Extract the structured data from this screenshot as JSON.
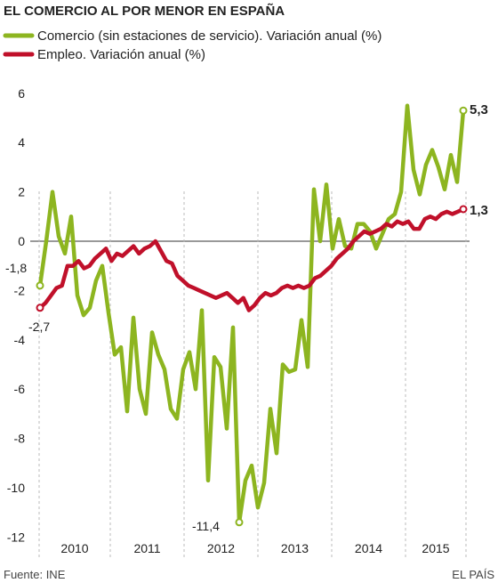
{
  "chart_data": {
    "type": "line",
    "title": "EL COMERCIO AL POR MENOR EN ESPAÑA",
    "yticks": [
      "6",
      "4",
      "2",
      "0",
      "-2",
      "-4",
      "-6",
      "-8",
      "-10",
      "-12"
    ],
    "ylim": [
      -12,
      6
    ],
    "year_labels": [
      "2010",
      "2011",
      "2012",
      "2013",
      "2014",
      "2015"
    ],
    "series": [
      {
        "name": "Comercio (sin estaciones de servicio). Variación anual (%)",
        "color": "#8db520",
        "values": [
          -1.8,
          0.0,
          2.0,
          0.2,
          -0.5,
          1.0,
          -2.2,
          -3.0,
          -2.7,
          -1.6,
          -1.0,
          -2.9,
          -4.6,
          -4.3,
          -6.9,
          -3.1,
          -6.0,
          -7.0,
          -3.7,
          -4.6,
          -5.2,
          -6.8,
          -7.2,
          -5.2,
          -4.5,
          -6.0,
          -2.8,
          -9.7,
          -4.7,
          -5.1,
          -7.6,
          -3.5,
          -11.4,
          -9.7,
          -9.1,
          -10.8,
          -9.8,
          -6.8,
          -8.6,
          -5.0,
          -5.3,
          -5.2,
          -3.2,
          -5.1,
          2.1,
          0.0,
          2.3,
          -0.3,
          0.9,
          -0.2,
          -0.3,
          0.7,
          0.7,
          0.4,
          -0.3,
          0.3,
          0.9,
          1.1,
          2.0,
          5.5,
          2.9,
          1.9,
          3.1,
          3.7,
          3.0,
          2.1,
          3.5,
          2.4,
          5.3
        ],
        "label_first": "-1,8",
        "label_min": "-11,4",
        "label_last": "5,3"
      },
      {
        "name": "Empleo. Variación anual (%)",
        "color": "#c0102a",
        "values": [
          -2.7,
          -2.5,
          -2.2,
          -1.9,
          -1.8,
          -1.0,
          -1.0,
          -0.8,
          -1.1,
          -1.0,
          -0.7,
          -0.5,
          -0.3,
          -0.8,
          -0.5,
          -0.6,
          -0.4,
          -0.2,
          -0.5,
          -0.3,
          -0.2,
          0.0,
          -0.4,
          -0.8,
          -0.9,
          -1.4,
          -1.6,
          -1.8,
          -1.9,
          -2.0,
          -2.1,
          -2.2,
          -2.3,
          -2.2,
          -2.1,
          -2.3,
          -2.5,
          -2.3,
          -2.8,
          -2.6,
          -2.3,
          -2.1,
          -2.2,
          -2.1,
          -1.9,
          -1.8,
          -1.9,
          -1.8,
          -1.9,
          -1.8,
          -1.5,
          -1.4,
          -1.2,
          -1.0,
          -0.7,
          -0.5,
          -0.3,
          0.0,
          0.2,
          0.4,
          0.3,
          0.4,
          0.5,
          0.7,
          0.6,
          0.8,
          0.7,
          0.8,
          0.5,
          0.5,
          0.9,
          1.0,
          0.9,
          1.1,
          1.2,
          1.1,
          1.2,
          1.3
        ],
        "label_first": "-2,7",
        "label_last": "1,3"
      }
    ]
  },
  "footer": {
    "source": "Fuente: INE",
    "credit": "EL PAÍS"
  }
}
